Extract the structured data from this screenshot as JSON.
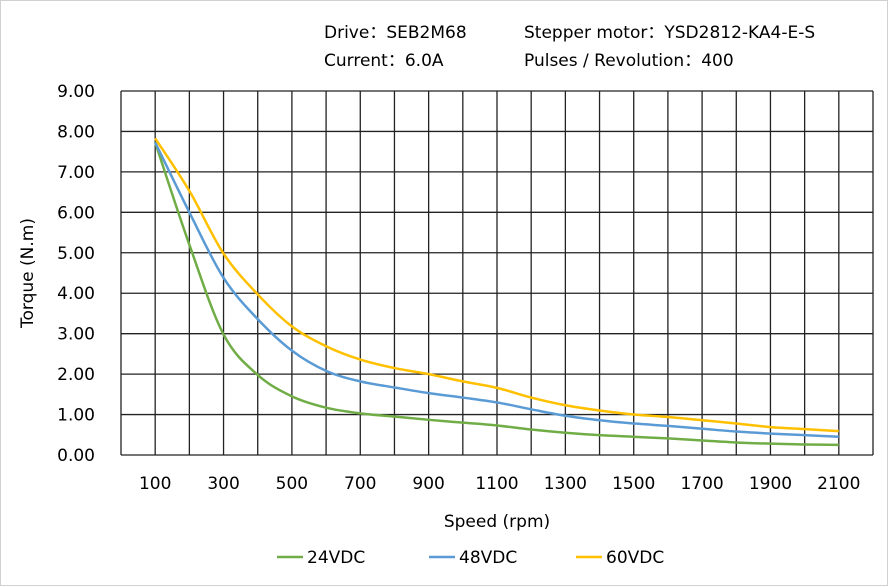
{
  "header": {
    "drive": "Drive：SEB2M68",
    "motor": "Stepper  motor：YSD2812-KA4-E-S",
    "current": "Current：6.0A",
    "pulses": "Pulses / Revolution：400"
  },
  "chart_data": {
    "type": "line",
    "title": "",
    "xlabel": "Speed  (rpm)",
    "ylabel": "Torque (N.m)",
    "xlim": [
      0,
      2200
    ],
    "ylim": [
      0,
      9
    ],
    "grid": true,
    "legend": "bottom",
    "x_ticks": [
      "100",
      "300",
      "500",
      "700",
      "900",
      "1100",
      "1300",
      "1500",
      "1700",
      "1900",
      "2100"
    ],
    "y_ticks": [
      "0.00",
      "1.00",
      "2.00",
      "3.00",
      "4.00",
      "5.00",
      "6.00",
      "7.00",
      "8.00",
      "9.00"
    ],
    "x": [
      100,
      200,
      300,
      400,
      500,
      600,
      700,
      800,
      900,
      1000,
      1100,
      1200,
      1300,
      1400,
      1500,
      1600,
      1700,
      1800,
      1900,
      2000,
      2100
    ],
    "series": [
      {
        "name": "24VDC",
        "color": "#70AD47",
        "values": [
          7.73,
          5.2,
          2.98,
          1.98,
          1.45,
          1.17,
          1.03,
          0.95,
          0.87,
          0.8,
          0.73,
          0.63,
          0.55,
          0.49,
          0.45,
          0.41,
          0.36,
          0.31,
          0.28,
          0.26,
          0.25
        ]
      },
      {
        "name": "48VDC",
        "color": "#5B9BD5",
        "values": [
          7.73,
          6.0,
          4.38,
          3.36,
          2.58,
          2.08,
          1.82,
          1.67,
          1.53,
          1.42,
          1.3,
          1.13,
          0.97,
          0.86,
          0.78,
          0.72,
          0.65,
          0.58,
          0.53,
          0.49,
          0.45
        ]
      },
      {
        "name": "60VDC",
        "color": "#FFC000",
        "values": [
          7.83,
          6.53,
          4.98,
          3.97,
          3.18,
          2.69,
          2.36,
          2.15,
          2.0,
          1.82,
          1.66,
          1.42,
          1.23,
          1.1,
          1.0,
          0.94,
          0.86,
          0.78,
          0.69,
          0.64,
          0.59
        ]
      }
    ]
  }
}
